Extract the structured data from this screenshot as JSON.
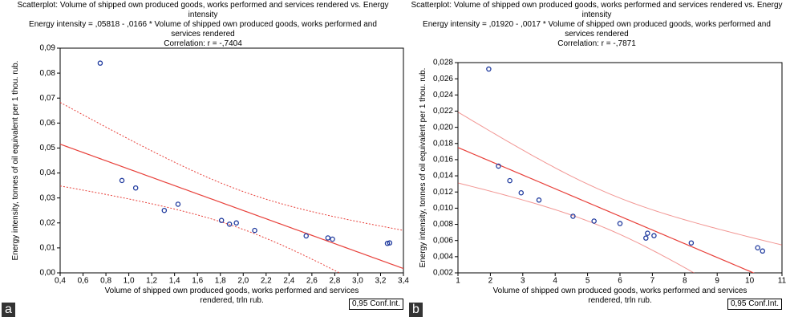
{
  "chart_data": [
    {
      "type": "scatter",
      "panel": "a",
      "title": "Scatterplot: Volume of shipped own produced goods, works performed and services rendered vs. Energy intensity",
      "equation": "Energy intensity = ,05818 - ,0166  * Volume of shipped own produced goods, works performed and services rendered",
      "correlation": "Correlation: r = -,7404",
      "x_label": "Volume of shipped own produced goods, works performed and services rendered, trln rub.",
      "y_label": "Energy intensity, tonnes of oil equivalent per 1 thou. rub.",
      "legend": "0,95 Conf.Int.",
      "regression": {
        "intercept": 0.05818,
        "slope": -0.0166
      },
      "x": [
        0.75,
        0.94,
        1.06,
        1.31,
        1.43,
        1.81,
        1.88,
        1.94,
        2.1,
        2.55,
        2.74,
        2.78,
        3.26,
        3.28
      ],
      "y": [
        0.084,
        0.037,
        0.034,
        0.025,
        0.0275,
        0.021,
        0.0195,
        0.02,
        0.017,
        0.0148,
        0.014,
        0.0135,
        0.0118,
        0.012
      ],
      "color": "#1f3a9e",
      "line_color": "#e8403a",
      "band_dashed": true,
      "xlim": [
        0.4,
        3.4
      ],
      "xticks": [
        {
          "value": 0.4,
          "label": "0,4"
        },
        {
          "value": 0.6,
          "label": "0,6"
        },
        {
          "value": 0.8,
          "label": "0,8"
        },
        {
          "value": 1.0,
          "label": "1,0"
        },
        {
          "value": 1.2,
          "label": "1,2"
        },
        {
          "value": 1.4,
          "label": "1,4"
        },
        {
          "value": 1.6,
          "label": "1,6"
        },
        {
          "value": 1.8,
          "label": "1,8"
        },
        {
          "value": 2.0,
          "label": "2,0"
        },
        {
          "value": 2.2,
          "label": "2,2"
        },
        {
          "value": 2.4,
          "label": "2,4"
        },
        {
          "value": 2.6,
          "label": "2,6"
        },
        {
          "value": 2.8,
          "label": "2,8"
        },
        {
          "value": 3.0,
          "label": "3,0"
        },
        {
          "value": 3.2,
          "label": "3,2"
        },
        {
          "value": 3.4,
          "label": "3,4"
        }
      ],
      "ylim": [
        0,
        0.09
      ],
      "yticks": [
        {
          "value": 0,
          "label": "0,00"
        },
        {
          "value": 0.01,
          "label": "0,01"
        },
        {
          "value": 0.02,
          "label": "0,02"
        },
        {
          "value": 0.03,
          "label": "0,03"
        },
        {
          "value": 0.04,
          "label": "0,04"
        },
        {
          "value": 0.05,
          "label": "0,05"
        },
        {
          "value": 0.06,
          "label": "0,06"
        },
        {
          "value": 0.07,
          "label": "0,07"
        },
        {
          "value": 0.08,
          "label": "0,08"
        },
        {
          "value": 0.09,
          "label": "0,09"
        }
      ]
    },
    {
      "type": "scatter",
      "panel": "b",
      "title": "Scatterplot: Volume of shipped own produced goods, works performed and services rendered vs. Energy intensity",
      "equation": "Energy intensity = ,01920 - ,0017  * Volume of shipped own produced goods, works performed and services rendered",
      "correlation": "Correlation: r = -,7871",
      "x_label": "Volume of shipped own produced goods, works performed and services rendered, trln rub.",
      "y_label": "Energy intensity, tonnes of oil equivalent per 1 thou. rub.",
      "legend": "0,95 Conf.Int.",
      "regression": {
        "intercept": 0.0192,
        "slope": -0.0017
      },
      "x": [
        1.95,
        2.25,
        2.6,
        2.95,
        3.5,
        4.55,
        5.2,
        6.0,
        6.8,
        6.85,
        7.05,
        8.2,
        10.25,
        10.4
      ],
      "y": [
        0.0272,
        0.0152,
        0.0134,
        0.0119,
        0.011,
        0.009,
        0.0084,
        0.0081,
        0.0063,
        0.0069,
        0.0066,
        0.0057,
        0.0051,
        0.0047
      ],
      "color": "#1f3a9e",
      "line_color": "#e8403a",
      "band_dashed": false,
      "xlim": [
        1,
        11
      ],
      "xticks": [
        1,
        2,
        3,
        4,
        5,
        6,
        7,
        8,
        9,
        10,
        11
      ],
      "ylim": [
        0.002,
        0.028
      ],
      "yticks": [
        {
          "value": 0.002,
          "label": "0,002"
        },
        {
          "value": 0.004,
          "label": "0,004"
        },
        {
          "value": 0.006,
          "label": "0,006"
        },
        {
          "value": 0.008,
          "label": "0,008"
        },
        {
          "value": 0.01,
          "label": "0,010"
        },
        {
          "value": 0.012,
          "label": "0,012"
        },
        {
          "value": 0.014,
          "label": "0,014"
        },
        {
          "value": 0.016,
          "label": "0,016"
        },
        {
          "value": 0.018,
          "label": "0,018"
        },
        {
          "value": 0.02,
          "label": "0,020"
        },
        {
          "value": 0.022,
          "label": "0,022"
        },
        {
          "value": 0.024,
          "label": "0,024"
        },
        {
          "value": 0.026,
          "label": "0,026"
        },
        {
          "value": 0.028,
          "label": "0,028"
        }
      ]
    }
  ]
}
